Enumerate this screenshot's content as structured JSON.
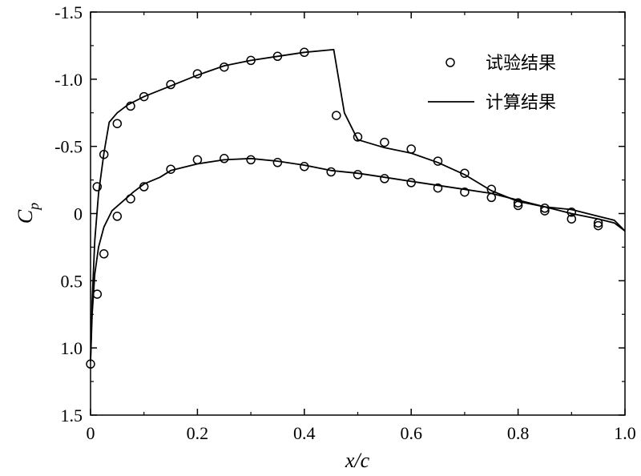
{
  "chart_data": {
    "type": "line",
    "xlabel": "x/c",
    "ylabel": "C_p",
    "ylabel_main": "C",
    "ylabel_sub": "p",
    "xlim": [
      0,
      1.0
    ],
    "ylim": [
      1.5,
      -1.5
    ],
    "y_inverted": true,
    "grid": false,
    "legend_position": "top-right",
    "x_ticks": [
      0,
      0.2,
      0.4,
      0.6,
      0.8,
      1.0
    ],
    "x_tick_labels": [
      "0",
      "0.2",
      "0.4",
      "0.6",
      "0.8",
      "1.0"
    ],
    "y_ticks": [
      -1.5,
      -1.0,
      -0.5,
      0,
      0.5,
      1.0,
      1.5
    ],
    "y_tick_labels": [
      "-1.5",
      "-1.0",
      "-0.5",
      "0",
      "0.5",
      "1.0",
      "1.5"
    ],
    "series": [
      {
        "name": "试验结果",
        "marker": "circle",
        "points": [
          [
            0.0,
            1.12
          ],
          [
            0.0125,
            0.6
          ],
          [
            0.025,
            0.3
          ],
          [
            0.05,
            0.02
          ],
          [
            0.075,
            -0.11
          ],
          [
            0.1,
            -0.2
          ],
          [
            0.15,
            -0.33
          ],
          [
            0.2,
            -0.4
          ],
          [
            0.25,
            -0.41
          ],
          [
            0.3,
            -0.4
          ],
          [
            0.35,
            -0.38
          ],
          [
            0.4,
            -0.35
          ],
          [
            0.45,
            -0.31
          ],
          [
            0.5,
            -0.29
          ],
          [
            0.55,
            -0.26
          ],
          [
            0.6,
            -0.23
          ],
          [
            0.65,
            -0.19
          ],
          [
            0.7,
            -0.16
          ],
          [
            0.75,
            -0.12
          ],
          [
            0.8,
            -0.08
          ],
          [
            0.85,
            -0.04
          ],
          [
            0.9,
            0.04
          ],
          [
            0.95,
            0.09
          ],
          [
            0.0125,
            -0.2
          ],
          [
            0.025,
            -0.44
          ],
          [
            0.05,
            -0.67
          ],
          [
            0.075,
            -0.8
          ],
          [
            0.1,
            -0.87
          ],
          [
            0.15,
            -0.96
          ],
          [
            0.2,
            -1.04
          ],
          [
            0.25,
            -1.09
          ],
          [
            0.3,
            -1.14
          ],
          [
            0.35,
            -1.17
          ],
          [
            0.4,
            -1.2
          ],
          [
            0.46,
            -0.73
          ],
          [
            0.5,
            -0.57
          ],
          [
            0.55,
            -0.53
          ],
          [
            0.6,
            -0.48
          ],
          [
            0.65,
            -0.39
          ],
          [
            0.7,
            -0.3
          ],
          [
            0.75,
            -0.18
          ],
          [
            0.8,
            -0.06
          ],
          [
            0.85,
            -0.02
          ],
          [
            0.9,
            -0.01
          ],
          [
            0.95,
            0.07
          ]
        ]
      },
      {
        "name": "计算结果",
        "marker": "line",
        "curves": [
          [
            [
              0.0,
              1.1
            ],
            [
              0.003,
              0.75
            ],
            [
              0.008,
              0.45
            ],
            [
              0.015,
              0.25
            ],
            [
              0.025,
              0.1
            ],
            [
              0.04,
              -0.02
            ],
            [
              0.06,
              -0.09
            ],
            [
              0.08,
              -0.16
            ],
            [
              0.1,
              -0.22
            ],
            [
              0.13,
              -0.27
            ],
            [
              0.15,
              -0.32
            ],
            [
              0.2,
              -0.37
            ],
            [
              0.25,
              -0.4
            ],
            [
              0.3,
              -0.41
            ],
            [
              0.35,
              -0.39
            ],
            [
              0.4,
              -0.36
            ],
            [
              0.45,
              -0.32
            ],
            [
              0.5,
              -0.3
            ],
            [
              0.55,
              -0.27
            ],
            [
              0.6,
              -0.24
            ],
            [
              0.65,
              -0.21
            ],
            [
              0.7,
              -0.18
            ],
            [
              0.75,
              -0.15
            ],
            [
              0.8,
              -0.1
            ],
            [
              0.85,
              -0.05
            ],
            [
              0.9,
              0.0
            ],
            [
              0.95,
              0.04
            ],
            [
              0.98,
              0.07
            ],
            [
              1.0,
              0.13
            ]
          ],
          [
            [
              0.0,
              1.1
            ],
            [
              0.003,
              0.65
            ],
            [
              0.008,
              0.2
            ],
            [
              0.015,
              -0.15
            ],
            [
              0.025,
              -0.45
            ],
            [
              0.035,
              -0.68
            ],
            [
              0.05,
              -0.75
            ],
            [
              0.07,
              -0.81
            ],
            [
              0.1,
              -0.87
            ],
            [
              0.15,
              -0.95
            ],
            [
              0.2,
              -1.03
            ],
            [
              0.25,
              -1.1
            ],
            [
              0.3,
              -1.14
            ],
            [
              0.35,
              -1.17
            ],
            [
              0.4,
              -1.2
            ],
            [
              0.455,
              -1.22
            ],
            [
              0.475,
              -0.75
            ],
            [
              0.5,
              -0.55
            ],
            [
              0.55,
              -0.49
            ],
            [
              0.6,
              -0.45
            ],
            [
              0.65,
              -0.38
            ],
            [
              0.7,
              -0.29
            ],
            [
              0.75,
              -0.17
            ],
            [
              0.8,
              -0.09
            ],
            [
              0.85,
              -0.05
            ],
            [
              0.9,
              -0.03
            ],
            [
              0.95,
              0.02
            ],
            [
              0.98,
              0.05
            ],
            [
              1.0,
              0.13
            ]
          ]
        ]
      }
    ]
  }
}
